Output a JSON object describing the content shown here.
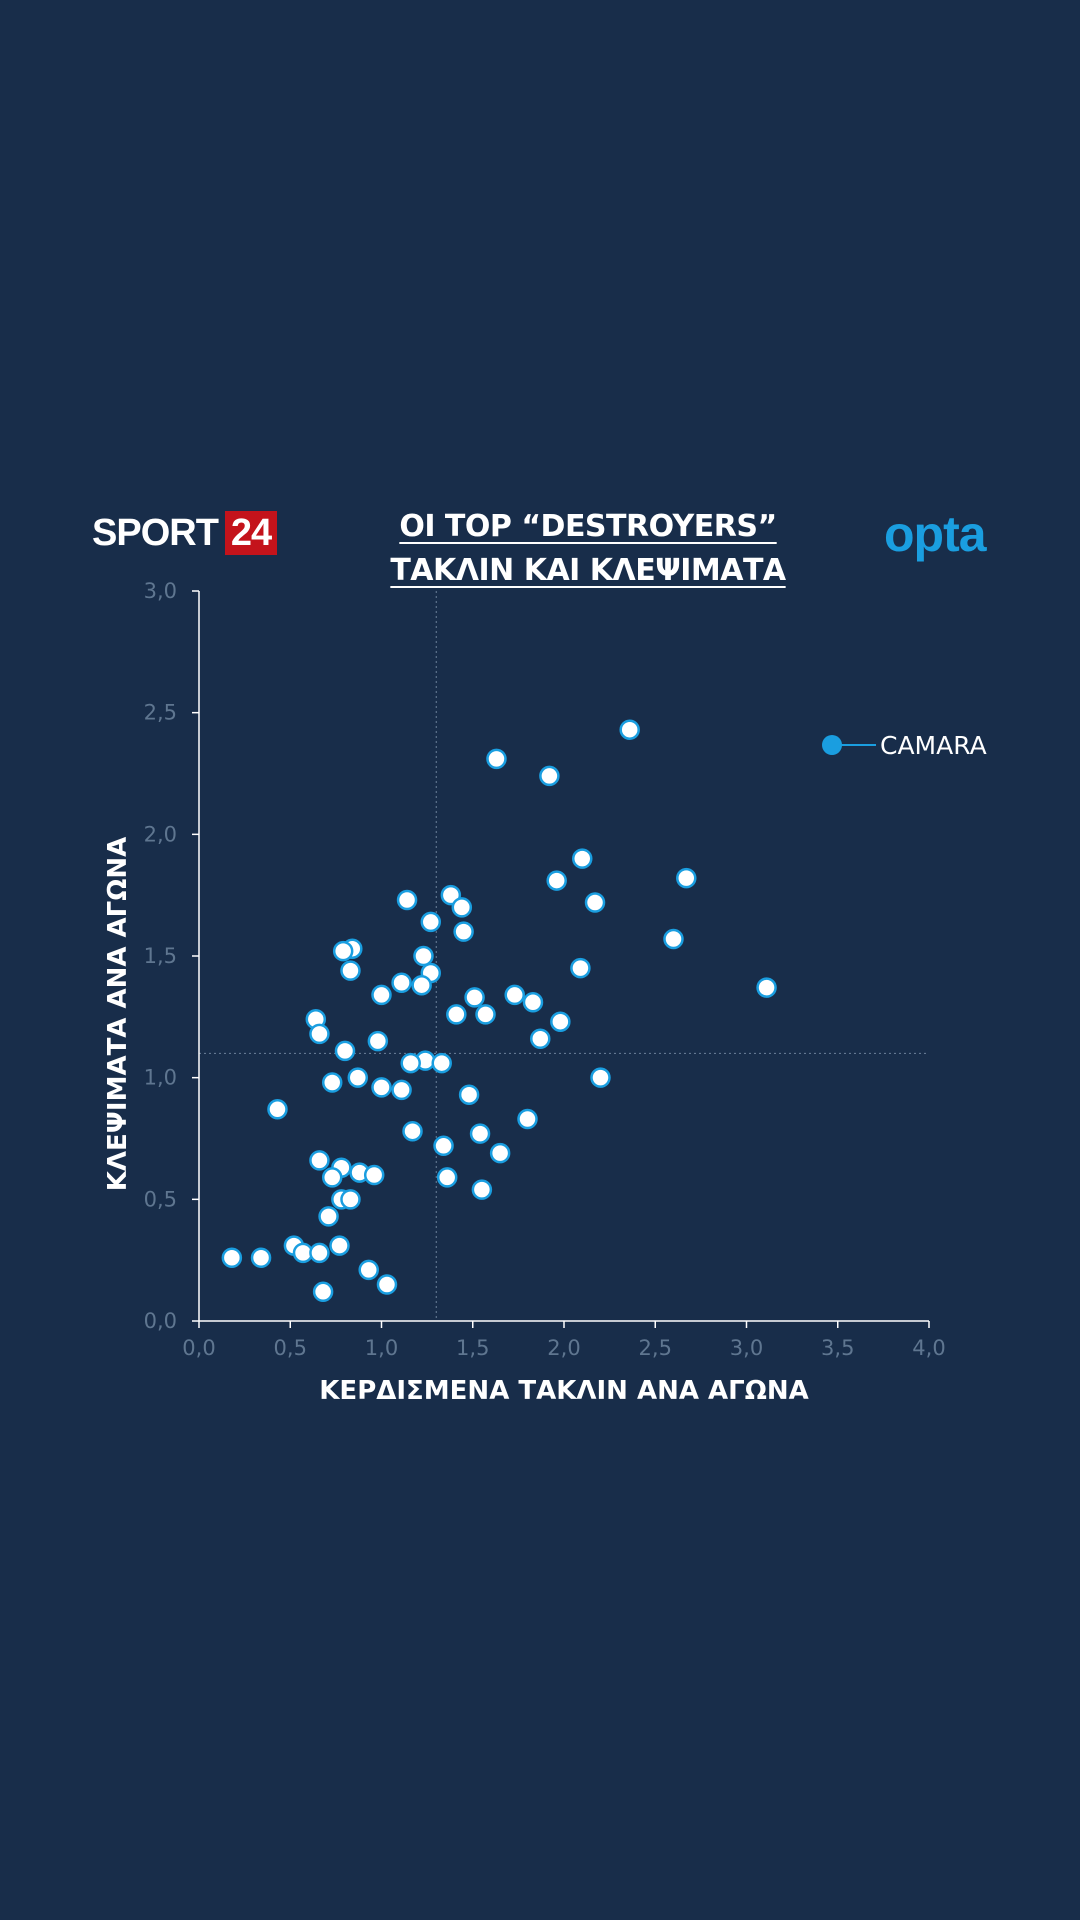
{
  "header": {
    "brand_word": "SPORT",
    "brand_number": "24",
    "title_line1": "ΟΙ TOP “DESTROYERS”",
    "title_line2": "ΤΑΚΛΙΝ ΚΑΙ ΚΛΕΨΙΜΑΤΑ",
    "partner_logo": "opta"
  },
  "colors": {
    "background": "#182d4a",
    "brand_red": "#c4131b",
    "accent_blue": "#1a9ee0",
    "point_fill": "#ffffff",
    "point_stroke": "#1a9ee0",
    "axis": "#ffffff",
    "tick_text": "#5f7690",
    "reference_line": "#6c819a"
  },
  "chart_data": {
    "type": "scatter",
    "title": "ΟΙ TOP “DESTROYERS” ΤΑΚΛΙΝ ΚΑΙ ΚΛΕΨΙΜΑΤΑ",
    "xlabel": "ΚΕΡΔΙΣΜΕΝΑ ΤΑΚΛΙΝ ΑΝΑ ΑΓΩΝΑ",
    "ylabel": "ΚΛΕΨΙΜΑΤΑ ΑΝΑ ΑΓΩΝΑ",
    "xlim": [
      0,
      4
    ],
    "ylim": [
      0,
      3
    ],
    "x_ticks": [
      "0,0",
      "0,5",
      "1,0",
      "1,5",
      "2,0",
      "2,5",
      "3,0",
      "3,5",
      "4,0"
    ],
    "y_ticks": [
      "0,0",
      "0,5",
      "1,0",
      "1,5",
      "2,0",
      "2,5",
      "3,0"
    ],
    "reference_x": 1.3,
    "reference_y": 1.1,
    "grid": false,
    "legend": {
      "position": "top-right",
      "entries": [
        "CAMARA"
      ]
    },
    "series": [
      {
        "name": "CAMARA",
        "x": [
          2.36,
          1.63,
          1.92,
          2.1,
          2.67,
          1.96,
          2.17,
          1.14,
          1.38,
          1.44,
          1.27,
          1.45,
          2.6,
          0.84,
          0.79,
          1.23,
          1.27,
          0.83,
          2.09,
          1.11,
          1.22,
          3.11,
          1.0,
          1.51,
          1.73,
          1.83,
          1.41,
          1.57,
          1.98,
          0.64,
          0.66,
          1.87,
          0.98,
          0.8,
          1.24,
          1.33,
          1.16,
          0.87,
          0.73,
          2.2,
          1.0,
          1.11,
          1.48,
          0.43,
          1.8,
          1.17,
          1.54,
          1.34,
          1.65,
          0.66,
          0.78,
          0.88,
          0.96,
          0.73,
          1.36,
          1.55,
          0.78,
          0.83,
          0.71,
          0.52,
          0.57,
          0.77,
          0.66,
          0.18,
          0.34,
          0.93,
          1.03,
          0.68
        ],
        "y": [
          2.43,
          2.31,
          2.24,
          1.9,
          1.82,
          1.81,
          1.72,
          1.73,
          1.75,
          1.7,
          1.64,
          1.6,
          1.57,
          1.53,
          1.52,
          1.5,
          1.43,
          1.44,
          1.45,
          1.39,
          1.38,
          1.37,
          1.34,
          1.33,
          1.34,
          1.31,
          1.26,
          1.26,
          1.23,
          1.24,
          1.18,
          1.16,
          1.15,
          1.11,
          1.07,
          1.06,
          1.06,
          1.0,
          0.98,
          1.0,
          0.96,
          0.95,
          0.93,
          0.87,
          0.83,
          0.78,
          0.77,
          0.72,
          0.69,
          0.66,
          0.63,
          0.61,
          0.6,
          0.59,
          0.59,
          0.54,
          0.5,
          0.5,
          0.43,
          0.31,
          0.28,
          0.31,
          0.28,
          0.26,
          0.26,
          0.21,
          0.15,
          0.12
        ]
      }
    ]
  }
}
